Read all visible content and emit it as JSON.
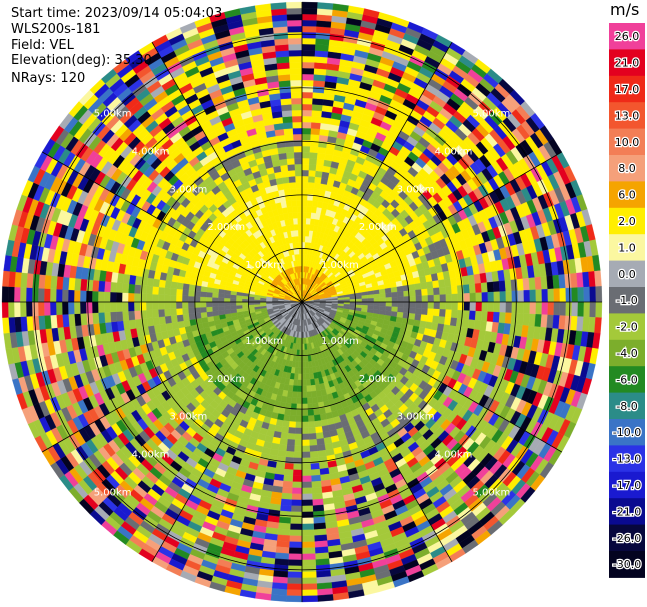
{
  "header": {
    "start_time": "Start time: 2023/09/14 05:04:03",
    "instrument": "WLS200s-181",
    "field": "Field: VEL",
    "elevation": "Elevation(deg): 35.30",
    "nrays": "NRays: 120"
  },
  "colorbar": {
    "unit": "m/s",
    "levels": [
      {
        "label": "26.0",
        "color": "#f0409a"
      },
      {
        "label": "21.0",
        "color": "#e3001f"
      },
      {
        "label": "17.0",
        "color": "#ef2a18"
      },
      {
        "label": "13.0",
        "color": "#f3562e"
      },
      {
        "label": "10.0",
        "color": "#f37e56"
      },
      {
        "label": "8.0",
        "color": "#f5a07a"
      },
      {
        "label": "6.0",
        "color": "#f5a400"
      },
      {
        "label": "2.0",
        "color": "#ffee00"
      },
      {
        "label": "1.0",
        "color": "#fbf7a0"
      },
      {
        "label": "0.0",
        "color": "#a6abb4"
      },
      {
        "label": "-1.0",
        "color": "#6a6d73"
      },
      {
        "label": "-2.0",
        "color": "#a4c93a"
      },
      {
        "label": "-4.0",
        "color": "#7cae2c"
      },
      {
        "label": "-6.0",
        "color": "#238a22"
      },
      {
        "label": "-8.0",
        "color": "#2b8c88"
      },
      {
        "label": "-10.0",
        "color": "#3a74c6"
      },
      {
        "label": "-13.0",
        "color": "#2b32e6"
      },
      {
        "label": "-17.0",
        "color": "#1a1ad0"
      },
      {
        "label": "-21.0",
        "color": "#0a0a90"
      },
      {
        "label": "-26.0",
        "color": "#07073d"
      },
      {
        "label": "-30.0",
        "color": "#030320"
      }
    ]
  },
  "chart_data": {
    "type": "heatmap",
    "projection": "polar PPI",
    "field": "VEL",
    "units": "m/s",
    "nrays": 120,
    "range_rings_km": [
      1.0,
      2.0,
      3.0,
      4.0,
      5.0
    ],
    "max_range_km": 5.6,
    "ring_labels": {
      "1.0": "1.00km",
      "2.0": "2.00km",
      "3.0": "3.00km",
      "4.0": "4.00km",
      "5.0": "5.00km"
    },
    "spokes_deg": [
      0,
      30,
      60,
      90,
      120,
      150,
      180,
      210,
      240,
      270,
      300,
      330
    ],
    "ring_label_azimuths_deg": [
      45,
      135,
      225,
      315
    ],
    "velocity_pattern": [
      {
        "range_km": [
          0.0,
          0.7
        ],
        "sector": "north",
        "value_ms": 6.0
      },
      {
        "range_km": [
          0.0,
          0.7
        ],
        "sector": "south",
        "value_ms": -1.0
      },
      {
        "range_km": [
          0.7,
          2.2
        ],
        "sector": "north",
        "value_ms": 2.0
      },
      {
        "range_km": [
          0.7,
          2.2
        ],
        "sector": "south",
        "value_ms": -4.0
      },
      {
        "range_km": [
          0.7,
          2.2
        ],
        "sector": "east-west",
        "value_ms": 0.0
      },
      {
        "range_km": [
          2.2,
          3.0
        ],
        "sector": "mixed",
        "value_ms": -2.0
      },
      {
        "range_km": [
          3.0,
          5.6
        ],
        "sector": "all",
        "value_ms": "noise (random)"
      }
    ]
  }
}
